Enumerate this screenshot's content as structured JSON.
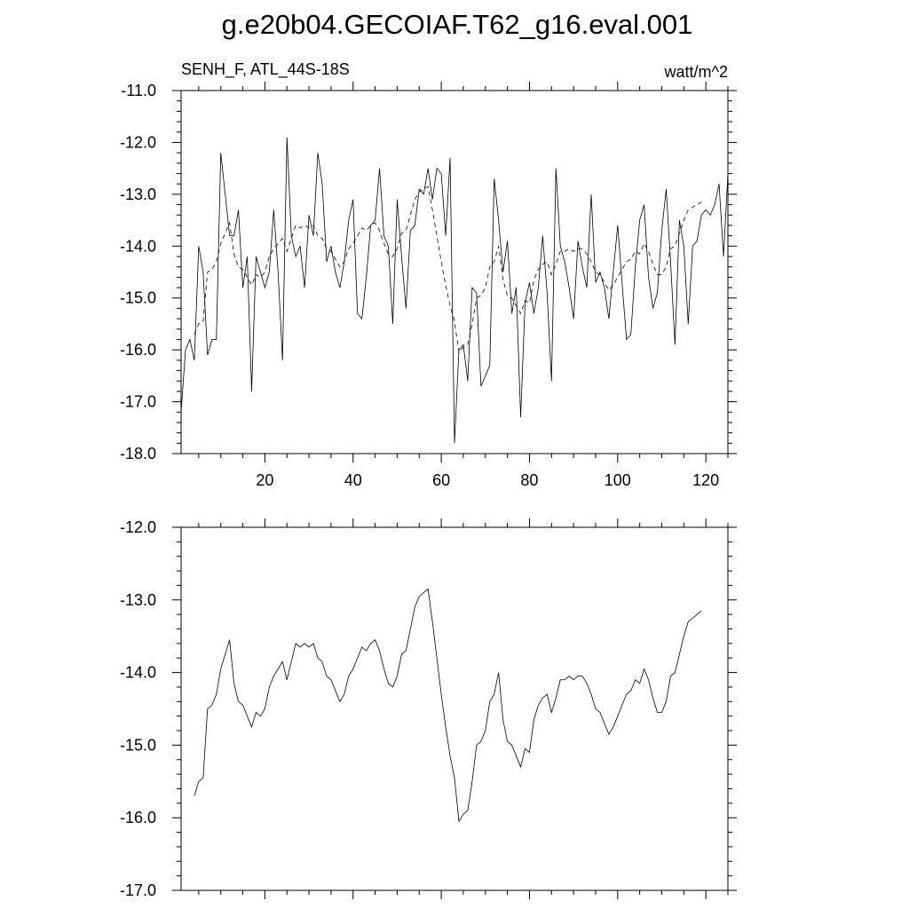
{
  "title": "g.e20b04.GECOIAF.T62_g16.eval.001",
  "top_left_label": "SENH_F, ATL_44S-18S",
  "top_right_label": "watt/m^2",
  "chart_data": [
    {
      "type": "line",
      "title": "g.e20b04.GECOIAF.T62_g16.eval.001",
      "subtitle_left": "SENH_F, ATL_44S-18S",
      "subtitle_right": "watt/m^2",
      "xlim": [
        1,
        125
      ],
      "ylim": [
        -18,
        -11
      ],
      "x_ticks": [
        20,
        40,
        60,
        80,
        100,
        120
      ],
      "y_ticks": [
        -18,
        -17,
        -16,
        -15,
        -14,
        -13,
        -12,
        -11
      ],
      "y_tick_labels": [
        "-18.0",
        "-17.0",
        "-16.0",
        "-15.0",
        "-14.0",
        "-13.0",
        "-12.0",
        "-11.0"
      ],
      "x_tick_labels": [
        "20",
        "40",
        "60",
        "80",
        "100",
        "120"
      ],
      "grid": false,
      "series": [
        {
          "style": "solid",
          "x_start": 1,
          "values": [
            -17.2,
            -16.0,
            -15.8,
            -16.2,
            -14.0,
            -14.5,
            -16.1,
            -15.8,
            -15.8,
            -12.2,
            -13.0,
            -13.8,
            -13.8,
            -13.3,
            -14.8,
            -14.2,
            -16.8,
            -14.2,
            -14.5,
            -14.8,
            -14.5,
            -13.3,
            -14.5,
            -16.2,
            -11.9,
            -13.8,
            -14.2,
            -14.0,
            -14.8,
            -13.4,
            -13.8,
            -12.2,
            -12.8,
            -14.3,
            -14.0,
            -14.5,
            -14.8,
            -14.3,
            -13.5,
            -13.1,
            -15.3,
            -15.4,
            -14.6,
            -13.6,
            -13.5,
            -12.5,
            -13.8,
            -14.0,
            -15.5,
            -13.1,
            -14.2,
            -15.2,
            -13.7,
            -13.6,
            -12.9,
            -13.0,
            -12.5,
            -13.1,
            -12.5,
            -12.6,
            -13.8,
            -12.3,
            -17.8,
            -16.0,
            -15.9,
            -16.6,
            -14.8,
            -14.9,
            -16.7,
            -16.5,
            -16.3,
            -12.7,
            -13.5,
            -14.5,
            -13.9,
            -15.3,
            -14.8,
            -17.3,
            -15.1,
            -14.7,
            -15.3,
            -14.8,
            -13.8,
            -14.9,
            -16.6,
            -12.5,
            -14.0,
            -14.3,
            -14.8,
            -15.4,
            -13.9,
            -14.4,
            -14.8,
            -13.0,
            -14.7,
            -14.5,
            -14.8,
            -15.4,
            -14.5,
            -13.6,
            -14.7,
            -15.8,
            -15.7,
            -14.4,
            -13.5,
            -13.2,
            -14.6,
            -15.2,
            -14.9,
            -13.7,
            -12.9,
            -14.3,
            -15.9,
            -13.5,
            -14.0,
            -15.5,
            -14.0,
            -13.9,
            -13.4,
            -13.3,
            -13.4,
            -13.2,
            -12.8,
            -14.2,
            -12.6
          ]
        },
        {
          "style": "dashed",
          "x_start": 4,
          "values": [
            -15.7,
            -15.5,
            -15.45,
            -14.5,
            -14.45,
            -14.3,
            -13.95,
            -13.75,
            -13.55,
            -14.15,
            -14.4,
            -14.45,
            -14.6,
            -14.75,
            -14.55,
            -14.6,
            -14.5,
            -14.2,
            -14.05,
            -13.95,
            -13.85,
            -14.1,
            -13.85,
            -13.6,
            -13.65,
            -13.6,
            -13.65,
            -13.6,
            -13.8,
            -13.85,
            -14.05,
            -14.1,
            -14.25,
            -14.4,
            -14.3,
            -14.05,
            -13.95,
            -13.8,
            -13.65,
            -13.7,
            -13.6,
            -13.55,
            -13.7,
            -13.95,
            -14.15,
            -14.2,
            -14.05,
            -13.75,
            -13.7,
            -13.4,
            -13.1,
            -12.95,
            -12.9,
            -12.85,
            -13.3,
            -13.8,
            -14.3,
            -14.75,
            -15.15,
            -15.45,
            -16.05,
            -15.95,
            -15.9,
            -15.5,
            -15.0,
            -14.95,
            -14.8,
            -14.4,
            -14.3,
            -14.0,
            -14.65,
            -14.95,
            -15.0,
            -15.15,
            -15.3,
            -15.05,
            -15.1,
            -14.65,
            -14.45,
            -14.35,
            -14.3,
            -14.55,
            -14.35,
            -14.1,
            -14.1,
            -14.05,
            -14.1,
            -14.05,
            -14.05,
            -14.15,
            -14.3,
            -14.5,
            -14.55,
            -14.7,
            -14.85,
            -14.75,
            -14.6,
            -14.45,
            -14.3,
            -14.25,
            -14.1,
            -14.15,
            -13.95,
            -14.1,
            -14.35,
            -14.55,
            -14.55,
            -14.4,
            -14.05,
            -14.0,
            -13.75,
            -13.5,
            -13.3,
            -13.25,
            -13.2,
            -13.15
          ]
        }
      ]
    },
    {
      "type": "line",
      "xlim": [
        1,
        125
      ],
      "ylim": [
        -17,
        -12
      ],
      "x_ticks": [
        20,
        40,
        60,
        80,
        100,
        120
      ],
      "y_ticks": [
        -17,
        -16,
        -15,
        -14,
        -13,
        -12
      ],
      "y_tick_labels": [
        "-17.0",
        "-16.0",
        "-15.0",
        "-14.0",
        "-13.0",
        "-12.0"
      ],
      "grid": false,
      "series": [
        {
          "style": "solid",
          "x_start": 4,
          "values": [
            -15.7,
            -15.5,
            -15.45,
            -14.5,
            -14.45,
            -14.3,
            -13.95,
            -13.75,
            -13.55,
            -14.15,
            -14.4,
            -14.45,
            -14.6,
            -14.75,
            -14.55,
            -14.6,
            -14.5,
            -14.2,
            -14.05,
            -13.95,
            -13.85,
            -14.1,
            -13.85,
            -13.6,
            -13.65,
            -13.6,
            -13.65,
            -13.6,
            -13.8,
            -13.85,
            -14.05,
            -14.1,
            -14.25,
            -14.4,
            -14.3,
            -14.05,
            -13.95,
            -13.8,
            -13.65,
            -13.7,
            -13.6,
            -13.55,
            -13.7,
            -13.95,
            -14.15,
            -14.2,
            -14.05,
            -13.75,
            -13.7,
            -13.4,
            -13.1,
            -12.95,
            -12.9,
            -12.85,
            -13.3,
            -13.8,
            -14.3,
            -14.75,
            -15.15,
            -15.45,
            -16.05,
            -15.95,
            -15.9,
            -15.5,
            -15.0,
            -14.95,
            -14.8,
            -14.4,
            -14.3,
            -14.0,
            -14.65,
            -14.95,
            -15.0,
            -15.15,
            -15.3,
            -15.05,
            -15.1,
            -14.65,
            -14.45,
            -14.35,
            -14.3,
            -14.55,
            -14.35,
            -14.1,
            -14.1,
            -14.05,
            -14.1,
            -14.05,
            -14.05,
            -14.15,
            -14.3,
            -14.5,
            -14.55,
            -14.7,
            -14.85,
            -14.75,
            -14.6,
            -14.45,
            -14.3,
            -14.25,
            -14.1,
            -14.15,
            -13.95,
            -14.1,
            -14.35,
            -14.55,
            -14.55,
            -14.4,
            -14.05,
            -14.0,
            -13.75,
            -13.5,
            -13.3,
            -13.25,
            -13.2,
            -13.15
          ]
        }
      ]
    }
  ]
}
